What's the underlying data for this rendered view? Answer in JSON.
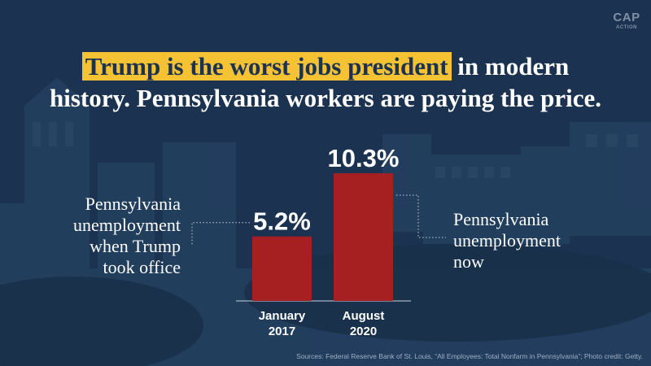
{
  "logo": {
    "line1": "CAP",
    "line2": "ACTION"
  },
  "headline": {
    "highlight": "Trump is the worst jobs president",
    "rest_line1": " in modern",
    "line2": "history. Pennsylvania workers are paying the price."
  },
  "annotations": {
    "left": [
      "Pennsylvania",
      "unemployment",
      "when Trump",
      "took office"
    ],
    "right": [
      "Pennsylvania",
      "unemployment",
      "now"
    ]
  },
  "source": "Sources: Federal Reserve Bank of St. Louis, “All Employees: Total Nonfarm in Pennsylvania”; Photo credit: Getty.",
  "colors": {
    "bar": "#a61f21",
    "background": "#1b3350",
    "highlight": "#f5c233"
  },
  "chart_data": {
    "type": "bar",
    "categories": [
      [
        "January",
        "2017"
      ],
      [
        "August",
        "2020"
      ]
    ],
    "values": [
      5.2,
      10.3
    ],
    "value_labels": [
      "5.2%",
      "10.3%"
    ],
    "ylim": [
      0,
      12
    ],
    "grid": false,
    "legend": "none"
  }
}
